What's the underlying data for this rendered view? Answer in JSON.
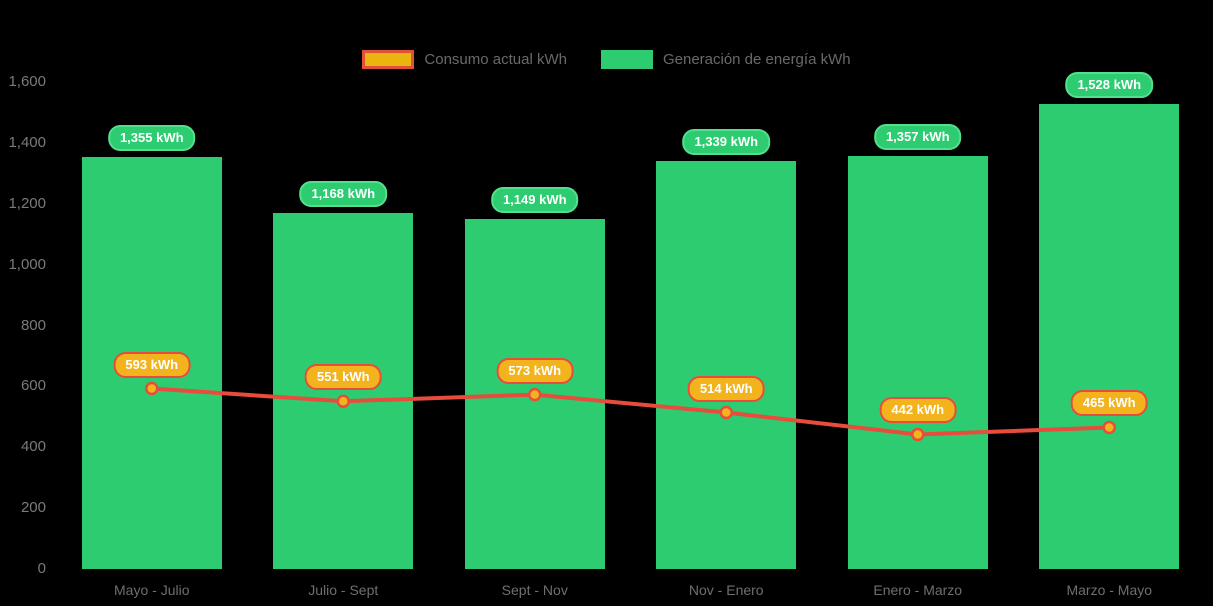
{
  "legend": {
    "items": [
      {
        "key": "consumo",
        "label": "Consumo actual kWh",
        "swatch": "line",
        "swatch_fill": "#e9b50e",
        "swatch_border": "#e2503c"
      },
      {
        "key": "generacion",
        "label": "Generación de energía kWh",
        "swatch": "bar",
        "swatch_fill": "#2ecc71"
      }
    ]
  },
  "chart_data": {
    "type": "combo",
    "categories": [
      "Mayo - Julio",
      "Julio - Sept",
      "Sept - Nov",
      "Nov - Enero",
      "Enero - Marzo",
      "Marzo - Mayo"
    ],
    "series": [
      {
        "name": "Generación de energía kWh",
        "type": "bar",
        "color": "#2ecc71",
        "values": [
          1355,
          1168,
          1149,
          1339,
          1357,
          1528
        ],
        "labels": [
          "1,355 kWh",
          "1,168 kWh",
          "1,149 kWh",
          "1,339 kWh",
          "1,357 kWh",
          "1,528 kWh"
        ]
      },
      {
        "name": "Consumo actual kWh",
        "type": "line",
        "color": "#e74c3c",
        "marker_fill": "#f2b31c",
        "values": [
          593,
          551,
          573,
          514,
          442,
          465
        ],
        "labels": [
          "593 kWh",
          "551 kWh",
          "573 kWh",
          "514 kWh",
          "442 kWh",
          "465 kWh"
        ]
      }
    ],
    "ylim": [
      0,
      1600
    ],
    "ytick_step": 200,
    "ytick_labels": [
      "0",
      "200",
      "400",
      "600",
      "800",
      "1,000",
      "1,200",
      "1,400",
      "1,600"
    ],
    "grid": false,
    "axis_lines": false,
    "legend_position": "top-center",
    "background": "#000000"
  }
}
